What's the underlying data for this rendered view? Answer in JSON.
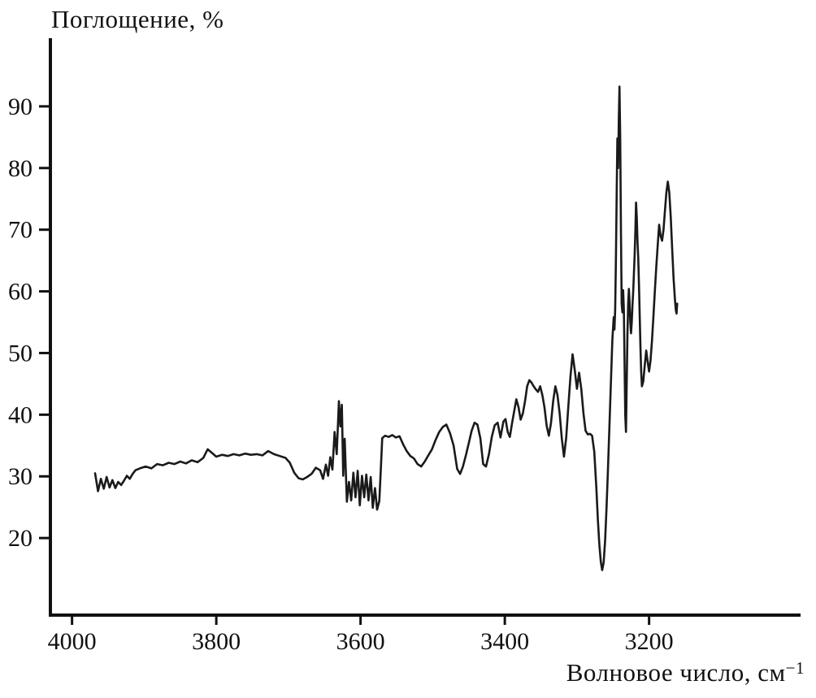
{
  "title": "Поглощение, %",
  "xlabel": {
    "base": "Волновое число, см",
    "sup": "−1"
  },
  "chart_data": {
    "type": "line",
    "title": "Поглощение, %",
    "xlabel": "Волновое число, см⁻¹",
    "ylabel": "Поглощение, %",
    "legend": null,
    "grid": false,
    "x_reversed": true,
    "xlim": [
      4030,
      2990
    ],
    "ylim": [
      7.5,
      100
    ],
    "x_ticks": [
      4000,
      3800,
      3600,
      3400,
      3200
    ],
    "y_ticks": [
      20,
      30,
      40,
      50,
      60,
      70,
      80,
      90
    ],
    "line_color": "#1a1a1a",
    "axis_color": "#111111",
    "line_width": 2.6,
    "points": [
      [
        3968,
        30.5
      ],
      [
        3964,
        27.6
      ],
      [
        3960,
        29.6
      ],
      [
        3956,
        28.0
      ],
      [
        3952,
        29.9
      ],
      [
        3948,
        28.2
      ],
      [
        3944,
        29.4
      ],
      [
        3940,
        28.1
      ],
      [
        3936,
        29.1
      ],
      [
        3932,
        28.6
      ],
      [
        3928,
        29.3
      ],
      [
        3924,
        30.1
      ],
      [
        3920,
        29.6
      ],
      [
        3916,
        30.4
      ],
      [
        3912,
        31.0
      ],
      [
        3906,
        31.3
      ],
      [
        3898,
        31.6
      ],
      [
        3890,
        31.3
      ],
      [
        3882,
        32.0
      ],
      [
        3874,
        31.8
      ],
      [
        3866,
        32.2
      ],
      [
        3858,
        32.0
      ],
      [
        3850,
        32.4
      ],
      [
        3842,
        32.1
      ],
      [
        3834,
        32.6
      ],
      [
        3826,
        32.3
      ],
      [
        3818,
        33.0
      ],
      [
        3812,
        34.4
      ],
      [
        3806,
        33.8
      ],
      [
        3800,
        33.2
      ],
      [
        3792,
        33.5
      ],
      [
        3784,
        33.3
      ],
      [
        3776,
        33.6
      ],
      [
        3768,
        33.4
      ],
      [
        3760,
        33.7
      ],
      [
        3752,
        33.5
      ],
      [
        3744,
        33.6
      ],
      [
        3736,
        33.4
      ],
      [
        3728,
        34.1
      ],
      [
        3720,
        33.6
      ],
      [
        3712,
        33.3
      ],
      [
        3704,
        33.0
      ],
      [
        3698,
        32.2
      ],
      [
        3692,
        30.6
      ],
      [
        3686,
        29.7
      ],
      [
        3680,
        29.5
      ],
      [
        3674,
        29.9
      ],
      [
        3668,
        30.4
      ],
      [
        3662,
        31.4
      ],
      [
        3656,
        31.0
      ],
      [
        3652,
        29.6
      ],
      [
        3648,
        31.9
      ],
      [
        3645,
        30.1
      ],
      [
        3642,
        33.1
      ],
      [
        3639,
        31.1
      ],
      [
        3636,
        37.2
      ],
      [
        3633,
        33.6
      ],
      [
        3630,
        42.2
      ],
      [
        3628,
        38.1
      ],
      [
        3626,
        41.6
      ],
      [
        3624,
        30.1
      ],
      [
        3622,
        36.1
      ],
      [
        3619,
        25.9
      ],
      [
        3616,
        29.1
      ],
      [
        3613,
        26.1
      ],
      [
        3610,
        30.6
      ],
      [
        3607,
        26.6
      ],
      [
        3604,
        30.9
      ],
      [
        3601,
        25.3
      ],
      [
        3598,
        30.1
      ],
      [
        3595,
        26.6
      ],
      [
        3592,
        30.3
      ],
      [
        3589,
        26.1
      ],
      [
        3586,
        29.9
      ],
      [
        3583,
        24.9
      ],
      [
        3580,
        28.1
      ],
      [
        3577,
        24.6
      ],
      [
        3574,
        26.0
      ],
      [
        3572,
        31.0
      ],
      [
        3570,
        36.2
      ],
      [
        3566,
        36.6
      ],
      [
        3561,
        36.4
      ],
      [
        3556,
        36.7
      ],
      [
        3551,
        36.3
      ],
      [
        3546,
        36.5
      ],
      [
        3541,
        35.2
      ],
      [
        3536,
        34.1
      ],
      [
        3531,
        33.3
      ],
      [
        3526,
        32.9
      ],
      [
        3521,
        32.0
      ],
      [
        3516,
        31.6
      ],
      [
        3511,
        32.4
      ],
      [
        3506,
        33.4
      ],
      [
        3501,
        34.4
      ],
      [
        3496,
        35.9
      ],
      [
        3491,
        37.2
      ],
      [
        3486,
        38.0
      ],
      [
        3481,
        38.4
      ],
      [
        3476,
        37.0
      ],
      [
        3471,
        35.0
      ],
      [
        3466,
        31.2
      ],
      [
        3462,
        30.4
      ],
      [
        3458,
        31.6
      ],
      [
        3454,
        33.4
      ],
      [
        3450,
        35.4
      ],
      [
        3446,
        37.4
      ],
      [
        3442,
        38.7
      ],
      [
        3438,
        38.4
      ],
      [
        3434,
        36.2
      ],
      [
        3430,
        32.0
      ],
      [
        3426,
        31.6
      ],
      [
        3422,
        33.6
      ],
      [
        3418,
        36.4
      ],
      [
        3414,
        38.3
      ],
      [
        3410,
        38.7
      ],
      [
        3406,
        36.3
      ],
      [
        3402,
        38.9
      ],
      [
        3399,
        39.3
      ],
      [
        3396,
        37.2
      ],
      [
        3393,
        36.4
      ],
      [
        3390,
        38.6
      ],
      [
        3387,
        40.6
      ],
      [
        3384,
        42.5
      ],
      [
        3381,
        41.2
      ],
      [
        3378,
        39.2
      ],
      [
        3375,
        40.2
      ],
      [
        3372,
        42.2
      ],
      [
        3369,
        44.6
      ],
      [
        3366,
        45.6
      ],
      [
        3363,
        45.2
      ],
      [
        3360,
        44.6
      ],
      [
        3357,
        44.1
      ],
      [
        3354,
        43.7
      ],
      [
        3351,
        44.6
      ],
      [
        3348,
        43.2
      ],
      [
        3345,
        41.2
      ],
      [
        3342,
        38.2
      ],
      [
        3339,
        36.6
      ],
      [
        3336,
        38.6
      ],
      [
        3333,
        42.2
      ],
      [
        3330,
        44.6
      ],
      [
        3327,
        43.2
      ],
      [
        3324,
        40.2
      ],
      [
        3321,
        36.2
      ],
      [
        3318,
        33.2
      ],
      [
        3315,
        36.2
      ],
      [
        3312,
        41.2
      ],
      [
        3309,
        46.2
      ],
      [
        3306,
        49.8
      ],
      [
        3303,
        47.2
      ],
      [
        3300,
        44.2
      ],
      [
        3297,
        46.8
      ],
      [
        3294,
        44.2
      ],
      [
        3291,
        40.2
      ],
      [
        3288,
        37.4
      ],
      [
        3285,
        36.8
      ],
      [
        3282,
        36.9
      ],
      [
        3279,
        36.6
      ],
      [
        3276,
        34.0
      ],
      [
        3273,
        28.0
      ],
      [
        3271,
        23.0
      ],
      [
        3269,
        19.0
      ],
      [
        3267,
        16.2
      ],
      [
        3265,
        14.8
      ],
      [
        3263,
        16.0
      ],
      [
        3261,
        19.5
      ],
      [
        3259,
        25.0
      ],
      [
        3257,
        31.0
      ],
      [
        3255,
        38.0
      ],
      [
        3253,
        45.0
      ],
      [
        3251,
        52.0
      ],
      [
        3249,
        55.8
      ],
      [
        3248,
        53.8
      ],
      [
        3247,
        57.0
      ],
      [
        3246,
        65.0
      ],
      [
        3245,
        75.0
      ],
      [
        3244,
        84.8
      ],
      [
        3243,
        80.0
      ],
      [
        3242,
        88.0
      ],
      [
        3241,
        93.2
      ],
      [
        3240,
        85.0
      ],
      [
        3239,
        70.0
      ],
      [
        3238,
        58.0
      ],
      [
        3237,
        56.6
      ],
      [
        3236,
        60.2
      ],
      [
        3235,
        57.0
      ],
      [
        3234,
        48.0
      ],
      [
        3233,
        40.0
      ],
      [
        3232,
        37.2
      ],
      [
        3231,
        45.0
      ],
      [
        3230,
        53.0
      ],
      [
        3229,
        58.0
      ],
      [
        3228,
        60.4
      ],
      [
        3227,
        58.0
      ],
      [
        3226,
        55.0
      ],
      [
        3225,
        53.2
      ],
      [
        3224,
        55.0
      ],
      [
        3223,
        57.8
      ],
      [
        3222,
        60.0
      ],
      [
        3221,
        63.0
      ],
      [
        3220,
        66.0
      ],
      [
        3219,
        70.0
      ],
      [
        3218,
        74.4
      ],
      [
        3217,
        72.0
      ],
      [
        3216,
        68.0
      ],
      [
        3215,
        65.4
      ],
      [
        3214,
        61.0
      ],
      [
        3213,
        56.0
      ],
      [
        3212,
        51.0
      ],
      [
        3211,
        47.0
      ],
      [
        3210,
        44.6
      ],
      [
        3208,
        45.4
      ],
      [
        3206,
        48.0
      ],
      [
        3204,
        50.4
      ],
      [
        3202,
        48.6
      ],
      [
        3200,
        47.0
      ],
      [
        3198,
        48.8
      ],
      [
        3196,
        52.0
      ],
      [
        3194,
        56.0
      ],
      [
        3192,
        60.0
      ],
      [
        3190,
        64.0
      ],
      [
        3188,
        67.6
      ],
      [
        3186,
        70.8
      ],
      [
        3184,
        69.0
      ],
      [
        3182,
        68.2
      ],
      [
        3180,
        70.0
      ],
      [
        3178,
        73.0
      ],
      [
        3176,
        76.0
      ],
      [
        3174,
        77.8
      ],
      [
        3172,
        76.0
      ],
      [
        3170,
        72.0
      ],
      [
        3168,
        67.0
      ],
      [
        3166,
        62.0
      ],
      [
        3164,
        58.4
      ],
      [
        3163,
        57.0
      ],
      [
        3162,
        56.4
      ],
      [
        3161,
        58.0
      ]
    ]
  }
}
